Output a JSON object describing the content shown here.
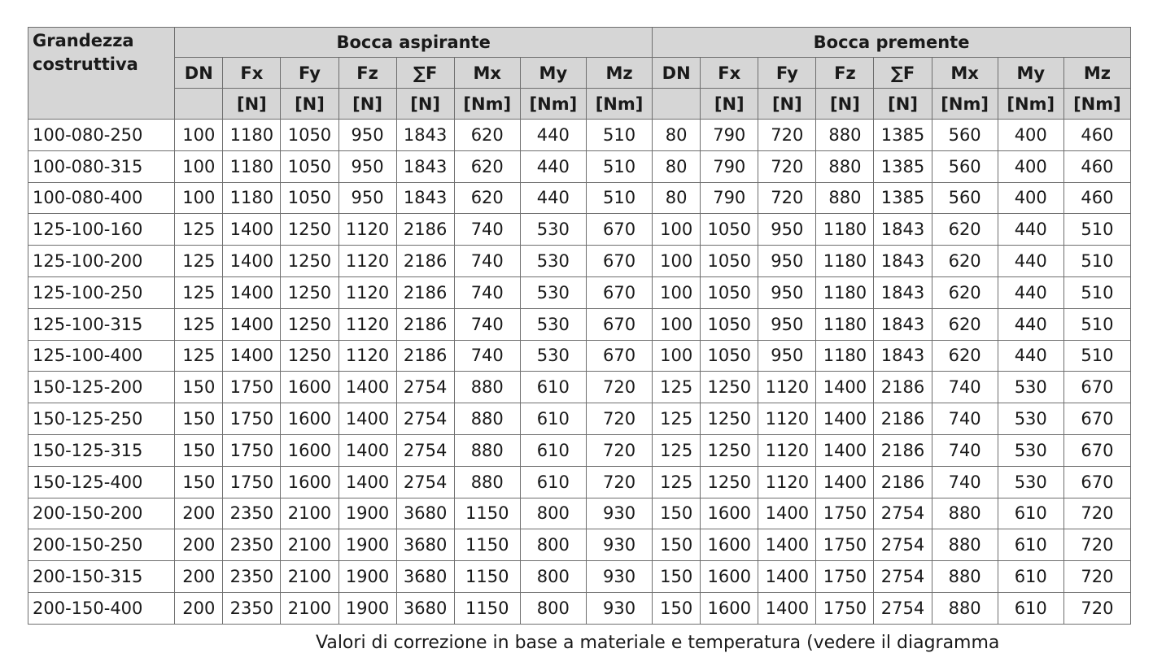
{
  "table": {
    "corner_header": "Grandezza costruttiva",
    "group_headers": [
      "Bocca aspirante",
      "Bocca premente"
    ],
    "subgroup_columns": [
      "DN",
      "Fx",
      "Fy",
      "Fz",
      "∑F",
      "Mx",
      "My",
      "Mz"
    ],
    "subgroup_units": [
      "",
      "[N]",
      "[N]",
      "[N]",
      "[N]",
      "[Nm]",
      "[Nm]",
      "[Nm]"
    ],
    "rows": [
      [
        "100-080-250",
        "100",
        "1180",
        "1050",
        "950",
        "1843",
        "620",
        "440",
        "510",
        "80",
        "790",
        "720",
        "880",
        "1385",
        "560",
        "400",
        "460"
      ],
      [
        "100-080-315",
        "100",
        "1180",
        "1050",
        "950",
        "1843",
        "620",
        "440",
        "510",
        "80",
        "790",
        "720",
        "880",
        "1385",
        "560",
        "400",
        "460"
      ],
      [
        "100-080-400",
        "100",
        "1180",
        "1050",
        "950",
        "1843",
        "620",
        "440",
        "510",
        "80",
        "790",
        "720",
        "880",
        "1385",
        "560",
        "400",
        "460"
      ],
      [
        "125-100-160",
        "125",
        "1400",
        "1250",
        "1120",
        "2186",
        "740",
        "530",
        "670",
        "100",
        "1050",
        "950",
        "1180",
        "1843",
        "620",
        "440",
        "510"
      ],
      [
        "125-100-200",
        "125",
        "1400",
        "1250",
        "1120",
        "2186",
        "740",
        "530",
        "670",
        "100",
        "1050",
        "950",
        "1180",
        "1843",
        "620",
        "440",
        "510"
      ],
      [
        "125-100-250",
        "125",
        "1400",
        "1250",
        "1120",
        "2186",
        "740",
        "530",
        "670",
        "100",
        "1050",
        "950",
        "1180",
        "1843",
        "620",
        "440",
        "510"
      ],
      [
        "125-100-315",
        "125",
        "1400",
        "1250",
        "1120",
        "2186",
        "740",
        "530",
        "670",
        "100",
        "1050",
        "950",
        "1180",
        "1843",
        "620",
        "440",
        "510"
      ],
      [
        "125-100-400",
        "125",
        "1400",
        "1250",
        "1120",
        "2186",
        "740",
        "530",
        "670",
        "100",
        "1050",
        "950",
        "1180",
        "1843",
        "620",
        "440",
        "510"
      ],
      [
        "150-125-200",
        "150",
        "1750",
        "1600",
        "1400",
        "2754",
        "880",
        "610",
        "720",
        "125",
        "1250",
        "1120",
        "1400",
        "2186",
        "740",
        "530",
        "670"
      ],
      [
        "150-125-250",
        "150",
        "1750",
        "1600",
        "1400",
        "2754",
        "880",
        "610",
        "720",
        "125",
        "1250",
        "1120",
        "1400",
        "2186",
        "740",
        "530",
        "670"
      ],
      [
        "150-125-315",
        "150",
        "1750",
        "1600",
        "1400",
        "2754",
        "880",
        "610",
        "720",
        "125",
        "1250",
        "1120",
        "1400",
        "2186",
        "740",
        "530",
        "670"
      ],
      [
        "150-125-400",
        "150",
        "1750",
        "1600",
        "1400",
        "2754",
        "880",
        "610",
        "720",
        "125",
        "1250",
        "1120",
        "1400",
        "2186",
        "740",
        "530",
        "670"
      ],
      [
        "200-150-200",
        "200",
        "2350",
        "2100",
        "1900",
        "3680",
        "1150",
        "800",
        "930",
        "150",
        "1600",
        "1400",
        "1750",
        "2754",
        "880",
        "610",
        "720"
      ],
      [
        "200-150-250",
        "200",
        "2350",
        "2100",
        "1900",
        "3680",
        "1150",
        "800",
        "930",
        "150",
        "1600",
        "1400",
        "1750",
        "2754",
        "880",
        "610",
        "720"
      ],
      [
        "200-150-315",
        "200",
        "2350",
        "2100",
        "1900",
        "3680",
        "1150",
        "800",
        "930",
        "150",
        "1600",
        "1400",
        "1750",
        "2754",
        "880",
        "610",
        "720"
      ],
      [
        "200-150-400",
        "200",
        "2350",
        "2100",
        "1900",
        "3680",
        "1150",
        "800",
        "930",
        "150",
        "1600",
        "1400",
        "1750",
        "2754",
        "880",
        "610",
        "720"
      ]
    ]
  },
  "footnote": "Valori di correzione in base a materiale e temperatura (vedere il diagramma",
  "colors": {
    "header_background": "#d6d6d6",
    "border": "#6e6e6e"
  }
}
